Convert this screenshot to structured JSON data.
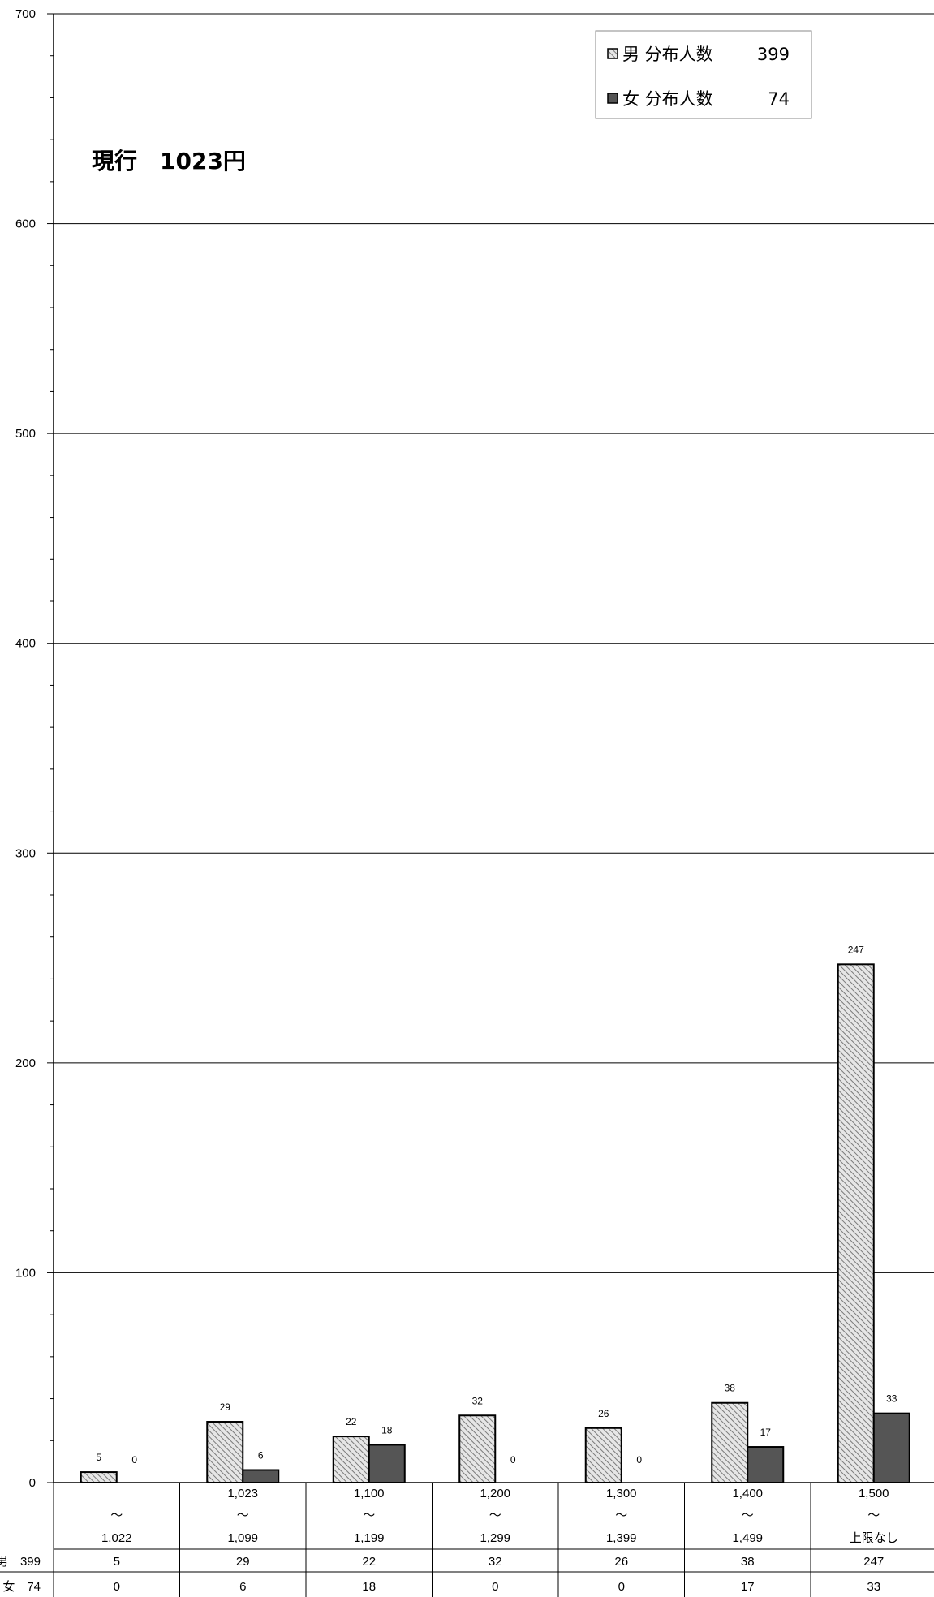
{
  "chart_data": {
    "type": "bar",
    "annotation": "現行　1023円",
    "ylim": [
      0,
      700
    ],
    "yticks": [
      "0",
      "100",
      "200",
      "300",
      "400",
      "500",
      "600",
      "700"
    ],
    "grid": true,
    "legend_position": "top-right",
    "categories": [
      {
        "from": "",
        "sep": "～",
        "to": "1,022"
      },
      {
        "from": "1,023",
        "sep": "～",
        "to": "1,099"
      },
      {
        "from": "1,100",
        "sep": "～",
        "to": "1,199"
      },
      {
        "from": "1,200",
        "sep": "～",
        "to": "1,299"
      },
      {
        "from": "1,300",
        "sep": "～",
        "to": "1,399"
      },
      {
        "from": "1,400",
        "sep": "～",
        "to": "1,499"
      },
      {
        "from": "1,500",
        "sep": "～",
        "to": "上限なし"
      }
    ],
    "series": [
      {
        "name": "男 分布人数",
        "total": "399",
        "table_label": "男　399",
        "values": [
          5,
          29,
          22,
          32,
          26,
          38,
          247
        ],
        "color": "#c8c8c8",
        "pattern": "hatch"
      },
      {
        "name": "女 分布人数",
        "total": "74",
        "table_label": "女　74",
        "values": [
          0,
          6,
          18,
          0,
          0,
          17,
          33
        ],
        "color": "#555555",
        "pattern": "solid"
      }
    ]
  }
}
